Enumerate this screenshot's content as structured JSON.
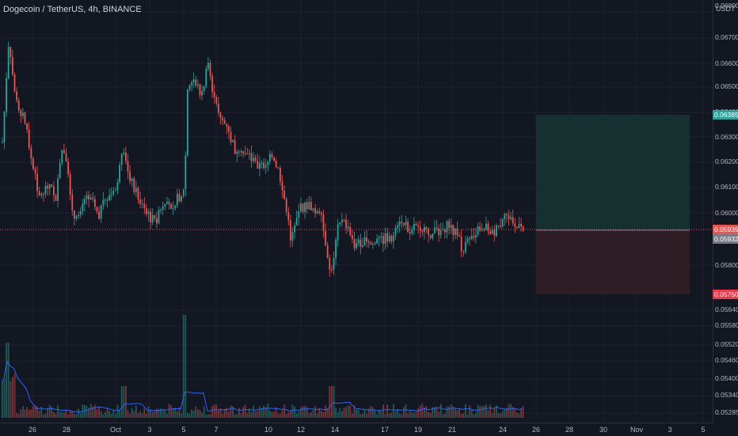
{
  "header": {
    "symbol_title": "Dogecoin / TetherUS, 4h, BINANCE"
  },
  "price_axis": {
    "currency": "USDT",
    "labels": [
      "0.06800",
      "0.06700",
      "0.06600",
      "0.06500",
      "0.06400",
      "0.06300",
      "0.06200",
      "0.06100",
      "0.06000",
      "0.05900",
      "0.05800",
      "0.05640",
      "0.05580",
      "0.05520",
      "0.05460",
      "0.05400",
      "0.05340",
      "0.05285"
    ],
    "badges": {
      "target": "0.06385",
      "current": "0.05939",
      "entry": "0.05932",
      "stop": "0.05750"
    }
  },
  "time_axis": {
    "labels": [
      "26",
      "28",
      "Oct",
      "3",
      "5",
      "7",
      "10",
      "12",
      "14",
      "17",
      "19",
      "21",
      "24",
      "26",
      "28",
      "30",
      "Nov",
      "3",
      "5"
    ]
  },
  "colors": {
    "background": "#131722",
    "up": "#26a69a",
    "down": "#ef5350",
    "volume_ma": "#2962ff",
    "target_zone": "#1b3a3a",
    "stop_zone": "#3a1f27",
    "target_badge": "#26a69a",
    "current_badge": "#ef5350",
    "entry_badge": "#787b86",
    "stop_badge": "#f23645"
  }
}
